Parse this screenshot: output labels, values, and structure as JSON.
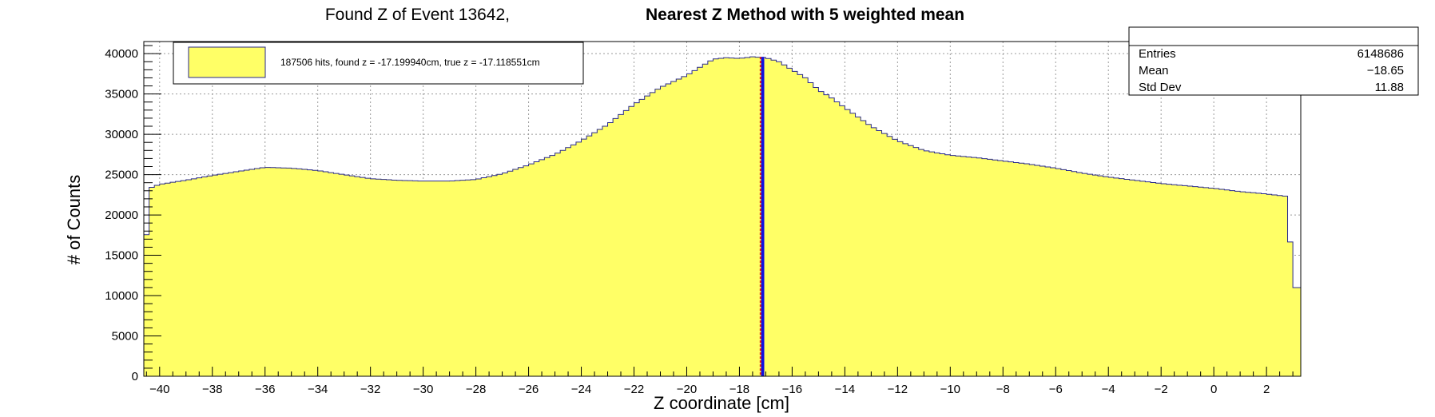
{
  "title": {
    "main": "Found Z of Event 13642,",
    "bold": "Nearest Z Method with 5 weighted mean"
  },
  "stats": {
    "rows": [
      {
        "label": "Entries",
        "value": "6148686"
      },
      {
        "label": "Mean",
        "value": "−18.65"
      },
      {
        "label": "Std Dev",
        "value": "11.88"
      }
    ]
  },
  "legend": {
    "text": "187506 hits, found z = -17.199940cm, true z = -17.118551cm"
  },
  "colors": {
    "fill": "#ffff66",
    "outline": "#2a2a8a",
    "found_line": "#e0201a",
    "true_line": "#1010e0"
  },
  "chart_data": {
    "type": "area",
    "title": "Found Z of Event 13642,   Nearest Z Method with 5 weighted mean",
    "xlabel": "Z coordinate [cm]",
    "ylabel": "# of Counts",
    "xlim": [
      -40.6,
      3.3
    ],
    "ylim": [
      0,
      41500
    ],
    "grid": true,
    "legend_position": "top-left",
    "x_ticks": [
      -40,
      -38,
      -36,
      -34,
      -32,
      -30,
      -28,
      -26,
      -24,
      -22,
      -20,
      -18,
      -16,
      -14,
      -12,
      -10,
      -8,
      -6,
      -4,
      -2,
      0,
      2
    ],
    "x_tick_labels": [
      "−40",
      "−38",
      "−36",
      "−34",
      "−32",
      "−30",
      "−28",
      "−26",
      "−24",
      "−22",
      "−20",
      "−18",
      "−16",
      "−14",
      "−12",
      "−10",
      "−8",
      "−6",
      "−4",
      "−2",
      "0",
      "2"
    ],
    "y_ticks": [
      0,
      5000,
      10000,
      15000,
      20000,
      25000,
      30000,
      35000,
      40000
    ],
    "y_tick_labels": [
      "0",
      "5000",
      "10000",
      "15000",
      "20000",
      "25000",
      "30000",
      "35000",
      "40000"
    ],
    "series": [
      {
        "x": [
          -40.6,
          -40.4,
          -40.0,
          -39.0,
          -38.0,
          -37.0,
          -36.0,
          -35.0,
          -34.0,
          -33.0,
          -32.0,
          -31.0,
          -30.0,
          -29.0,
          -28.0,
          -27.0,
          -26.0,
          -25.0,
          -24.0,
          -23.0,
          -22.0,
          -21.0,
          -20.0,
          -19.5,
          -19.0,
          -18.5,
          -18.0,
          -17.5,
          -17.0,
          -16.5,
          -16.0,
          -15.5,
          -15.0,
          -14.5,
          -14.0,
          -13.0,
          -12.0,
          -11.0,
          -10.0,
          -9.0,
          -8.0,
          -7.0,
          -6.0,
          -5.0,
          -4.0,
          -3.0,
          -2.0,
          -1.0,
          0.0,
          1.0,
          2.0,
          2.8,
          3.0,
          3.3
        ],
        "y": [
          11800,
          23300,
          23800,
          24300,
          24900,
          25400,
          25900,
          25800,
          25500,
          25000,
          24500,
          24300,
          24200,
          24200,
          24400,
          25100,
          26200,
          27500,
          29200,
          31200,
          33700,
          35800,
          37300,
          38300,
          39300,
          39500,
          39400,
          39600,
          39500,
          39000,
          38000,
          37000,
          35500,
          34500,
          33300,
          31000,
          29200,
          28000,
          27400,
          27100,
          26700,
          26300,
          25800,
          25200,
          24700,
          24300,
          23900,
          23600,
          23300,
          22900,
          22600,
          22300,
          11000,
          11000
        ]
      }
    ],
    "vertical_lines": [
      {
        "x": -17.19994,
        "label": "found z"
      },
      {
        "x": -17.118551,
        "label": "true z"
      }
    ]
  }
}
